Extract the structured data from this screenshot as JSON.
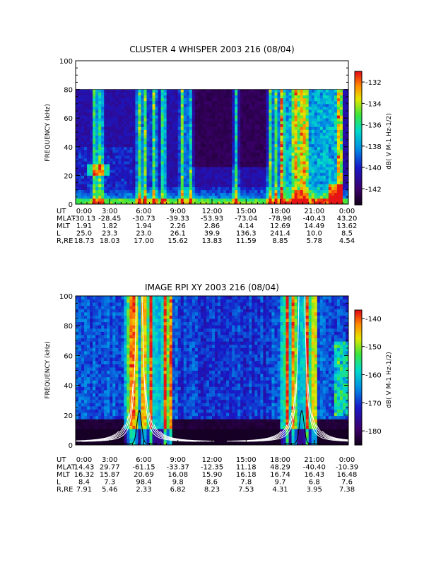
{
  "chart_data": [
    {
      "type": "heatmap",
      "title": "CLUSTER 4 WHISPER 2003 216 (08/04)",
      "ylabel": "FREQUENCY (kHz)",
      "ylim": [
        0,
        100
      ],
      "yticks": [
        "0",
        "20",
        "40",
        "60",
        "80",
        "100"
      ],
      "data_top_khz": 80,
      "colorbar": {
        "label": "dB( V M⁻¹ Hz⁻¹ᐟ²)",
        "label_text": "dB( V M-1 Hz-1/2)",
        "range": [
          -143.5,
          -131
        ],
        "ticks": [
          "-132",
          "-134",
          "-136",
          "-138",
          "-140",
          "-142"
        ]
      },
      "x_labels": [
        "0:00",
        "3:00",
        "6:00",
        "9:00",
        "12:00",
        "15:00",
        "18:00",
        "21:00",
        "0:00"
      ],
      "table": {
        "rows": [
          {
            "name": "UT",
            "values": [
              "0:00",
              "3:00",
              "6:00",
              "9:00",
              "12:00",
              "15:00",
              "18:00",
              "21:00",
              "0:00"
            ]
          },
          {
            "name": "MLAT",
            "values": [
              "-30.13",
              "-28.45",
              "-30.73",
              "-39.33",
              "-53.93",
              "-73.04",
              "-78.96",
              "-40.43",
              "43.20"
            ]
          },
          {
            "name": "MLT",
            "values": [
              "1.91",
              "1.82",
              "1.94",
              "2.26",
              "2.86",
              "4.14",
              "12.69",
              "14.49",
              "13.62"
            ]
          },
          {
            "name": "L",
            "values": [
              "25.0",
              "23.3",
              "23.0",
              "26.1",
              "39.9",
              "136.3",
              "241.4",
              "10.0",
              "8.5"
            ]
          },
          {
            "name": "R,RE",
            "values": [
              "18.73",
              "18.03",
              "17.00",
              "15.62",
              "13.83",
              "11.59",
              "8.85",
              "5.78",
              "4.54"
            ]
          }
        ]
      },
      "bursts_hours": [
        1.7,
        2.2,
        5.6,
        6.1,
        6.9,
        7.7,
        9.4,
        10.1,
        14.1,
        17.1,
        17.6,
        18.1,
        19.3,
        19.8,
        20.2,
        23.2
      ]
    },
    {
      "type": "heatmap",
      "title": "IMAGE RPI XY 2003 216 (08/04)",
      "ylabel": "FREQUENCY (kHz)",
      "ylim": [
        0,
        100
      ],
      "yticks": [
        "0",
        "20",
        "40",
        "60",
        "80",
        "100"
      ],
      "data_top_khz": 100,
      "colorbar": {
        "label_text": "dB( V M-1 Hz-1/2)",
        "range": [
          -185,
          -137
        ],
        "ticks": [
          "-140",
          "-150",
          "-160",
          "-170",
          "-180"
        ]
      },
      "x_labels": [
        "0:00",
        "3:00",
        "6:00",
        "9:00",
        "12:00",
        "15:00",
        "18:00",
        "21:00",
        "0:00"
      ],
      "table": {
        "rows": [
          {
            "name": "UT",
            "values": [
              "0:00",
              "3:00",
              "6:00",
              "9:00",
              "12:00",
              "15:00",
              "18:00",
              "21:00",
              "0:00"
            ]
          },
          {
            "name": "MLAT",
            "values": [
              "14.43",
              "29.77",
              "-61.15",
              "-33.37",
              "-12.35",
              "11.18",
              "48.29",
              "-40.40",
              "-10.39"
            ]
          },
          {
            "name": "MLT",
            "values": [
              "16.32",
              "15.87",
              "20.69",
              "16.08",
              "15.90",
              "16.18",
              "16.74",
              "16.43",
              "16.48"
            ]
          },
          {
            "name": "L",
            "values": [
              "8.4",
              "7.3",
              "98.4",
              "9.8",
              "8.6",
              "7.8",
              "9.7",
              "6.8",
              "7.6"
            ]
          },
          {
            "name": "R,RE",
            "values": [
              "7.91",
              "5.46",
              "2.33",
              "6.82",
              "8.23",
              "7.53",
              "4.31",
              "3.95",
              "7.38"
            ]
          }
        ]
      },
      "perigee_hours": [
        5.6,
        19.9
      ],
      "bursts_hours": [
        4.8,
        5.2,
        6.0,
        6.6,
        7.9,
        8.3,
        18.6,
        19.2,
        20.4,
        21.0
      ]
    }
  ]
}
